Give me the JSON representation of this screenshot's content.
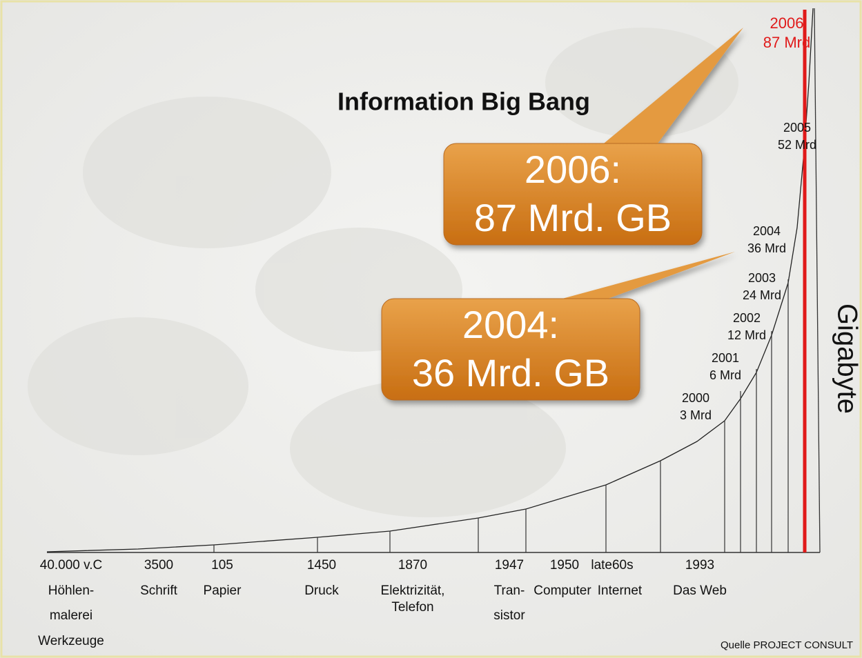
{
  "title": "Information Big Bang",
  "milestones": [
    {
      "year": "40.000 v.C",
      "lines": [
        "Höhlen-",
        "malerei",
        "Werkzeuge"
      ]
    },
    {
      "year": "3500",
      "lines": [
        "Schrift"
      ]
    },
    {
      "year": "105",
      "lines": [
        "Papier"
      ]
    },
    {
      "year": "1450",
      "lines": [
        "Druck"
      ]
    },
    {
      "year": "1870",
      "lines": [
        "Elektrizität,",
        "Telefon"
      ]
    },
    {
      "year": "1947",
      "lines": [
        "Tran-",
        "sistor"
      ]
    },
    {
      "year": "1950",
      "lines": [
        "Computer"
      ]
    },
    {
      "year": "late60s",
      "lines": [
        "Internet"
      ]
    },
    {
      "year": "1993",
      "lines": [
        "Das Web"
      ]
    }
  ],
  "data_points": [
    {
      "year": "2000",
      "amount": "3 Mrd"
    },
    {
      "year": "2001",
      "amount": "6 Mrd"
    },
    {
      "year": "2002",
      "amount": "12 Mrd"
    },
    {
      "year": "2003",
      "amount": "24 Mrd"
    },
    {
      "year": "2004",
      "amount": "36 Mrd"
    },
    {
      "year": "2005",
      "amount": "52 Mrd"
    },
    {
      "year": "2006",
      "amount": "87 Mrd"
    }
  ],
  "callouts": [
    {
      "line1": "2006:",
      "line2": "87 Mrd. GB"
    },
    {
      "line1": "2004:",
      "line2": "36 Mrd. GB"
    }
  ],
  "axis_label": "Gigabyte",
  "source": "Quelle PROJECT CONSULT"
}
